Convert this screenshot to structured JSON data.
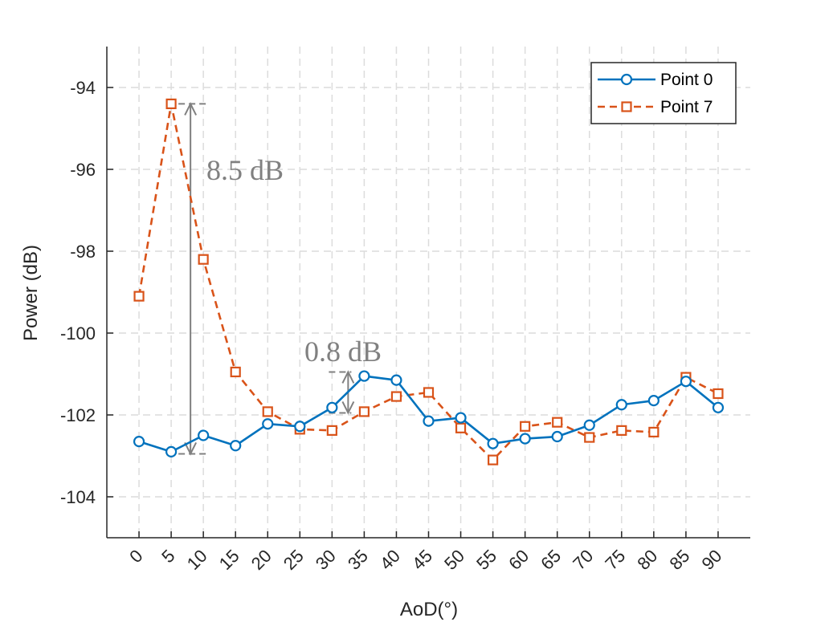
{
  "chart_data": {
    "type": "line",
    "title": "",
    "xlabel": "AoD(°)",
    "ylabel": "Power (dB)",
    "x": [
      0,
      5,
      10,
      15,
      20,
      25,
      30,
      35,
      40,
      45,
      50,
      55,
      60,
      65,
      70,
      75,
      80,
      85,
      90
    ],
    "x_tick_labels": [
      "0",
      "5",
      "10",
      "15",
      "20",
      "25",
      "30",
      "35",
      "40",
      "45",
      "50",
      "55",
      "60",
      "65",
      "70",
      "75",
      "80",
      "85",
      "90"
    ],
    "y_ticks": [
      -104,
      -102,
      -100,
      -98,
      -96,
      -94
    ],
    "y_tick_labels": [
      "-104",
      "-102",
      "-100",
      "-98",
      "-96",
      "-94"
    ],
    "xlim": [
      -5,
      95
    ],
    "ylim": [
      -105,
      -93
    ],
    "grid": true,
    "legend_position": "top-right",
    "series": [
      {
        "name": "Point 0",
        "color": "#0072BD",
        "line_style": "solid",
        "marker": "circle",
        "values": [
          -102.65,
          -102.9,
          -102.5,
          -102.75,
          -102.22,
          -102.28,
          -101.82,
          -101.05,
          -101.15,
          -102.15,
          -102.07,
          -102.7,
          -102.58,
          -102.53,
          -102.25,
          -101.75,
          -101.65,
          -101.18,
          -101.82
        ]
      },
      {
        "name": "Point 7",
        "color": "#D95319",
        "line_style": "dashed",
        "marker": "square",
        "values": [
          -99.1,
          -94.4,
          -98.2,
          -100.95,
          -101.92,
          -102.35,
          -102.38,
          -101.92,
          -101.55,
          -101.45,
          -102.32,
          -103.1,
          -102.28,
          -102.18,
          -102.55,
          -102.38,
          -102.42,
          -101.08,
          -101.48
        ]
      }
    ],
    "annotations": [
      {
        "text": "8.5 dB",
        "x": 8,
        "y_from": -94.4,
        "y_to": -102.95
      },
      {
        "text": "0.8 dB",
        "x": 32.5,
        "y_from": -100.95,
        "y_to": -101.95
      }
    ]
  }
}
